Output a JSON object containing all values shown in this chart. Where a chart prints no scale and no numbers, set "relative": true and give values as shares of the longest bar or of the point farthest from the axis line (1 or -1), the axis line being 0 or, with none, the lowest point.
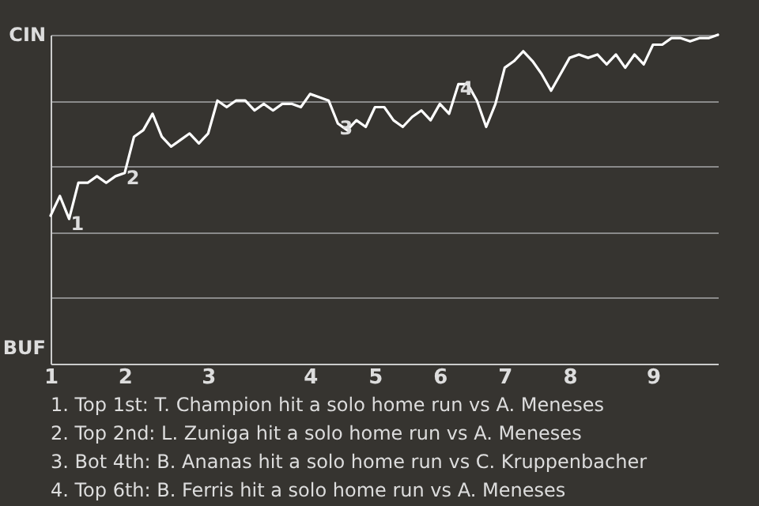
{
  "chart_data": {
    "type": "line",
    "categories": [
      "1",
      null,
      null,
      null,
      null,
      null,
      null,
      null,
      "2",
      null,
      null,
      null,
      null,
      null,
      null,
      null,
      null,
      "3",
      null,
      null,
      null,
      null,
      null,
      null,
      null,
      null,
      null,
      null,
      "4",
      null,
      null,
      null,
      null,
      null,
      null,
      "5",
      null,
      null,
      null,
      null,
      null,
      null,
      "6",
      null,
      null,
      null,
      null,
      null,
      null,
      "7",
      null,
      null,
      null,
      null,
      null,
      null,
      "8",
      null,
      null,
      null,
      null,
      null,
      null,
      null,
      null,
      "9",
      null,
      null,
      null,
      null,
      null,
      null,
      null
    ],
    "series": [
      {
        "color": "#ffffff",
        "values": [
          0.45,
          0.51,
          0.44,
          0.55,
          0.55,
          0.57,
          0.55,
          0.57,
          0.58,
          0.69,
          0.71,
          0.76,
          0.69,
          0.66,
          0.68,
          0.7,
          0.67,
          0.7,
          0.8,
          0.78,
          0.8,
          0.8,
          0.77,
          0.79,
          0.77,
          0.79,
          0.79,
          0.78,
          0.82,
          0.81,
          0.8,
          0.73,
          0.71,
          0.74,
          0.72,
          0.78,
          0.78,
          0.74,
          0.72,
          0.75,
          0.77,
          0.74,
          0.79,
          0.76,
          0.85,
          0.85,
          0.8,
          0.72,
          0.79,
          0.9,
          0.92,
          0.95,
          0.92,
          0.88,
          0.83,
          0.88,
          0.93,
          0.94,
          0.93,
          0.94,
          0.91,
          0.94,
          0.9,
          0.94,
          0.91,
          0.97,
          0.97,
          0.99,
          0.99,
          0.98,
          0.99,
          0.99,
          1.0
        ]
      }
    ],
    "relative": true,
    "grid": "y",
    "line_style": "solid",
    "marker": "none",
    "annotations": [
      {
        "text": "1",
        "y": 0.44
      },
      {
        "text": "2",
        "y": 0.58
      },
      {
        "text": "3",
        "y": 0.73
      },
      {
        "text": "4",
        "y": 0.85
      },
      "CIN",
      "BUF",
      "1. Top 1st: T. Champion hit a solo home run vs A. Meneses",
      "2. Top 2nd: L. Zuniga hit a solo home run vs A. Meneses",
      "3. Bot 4th: B. Ananas hit a solo home run vs C. Kruppenbacher",
      "4. Top 6th: B. Ferris hit a solo home run vs A. Meneses"
    ]
  }
}
